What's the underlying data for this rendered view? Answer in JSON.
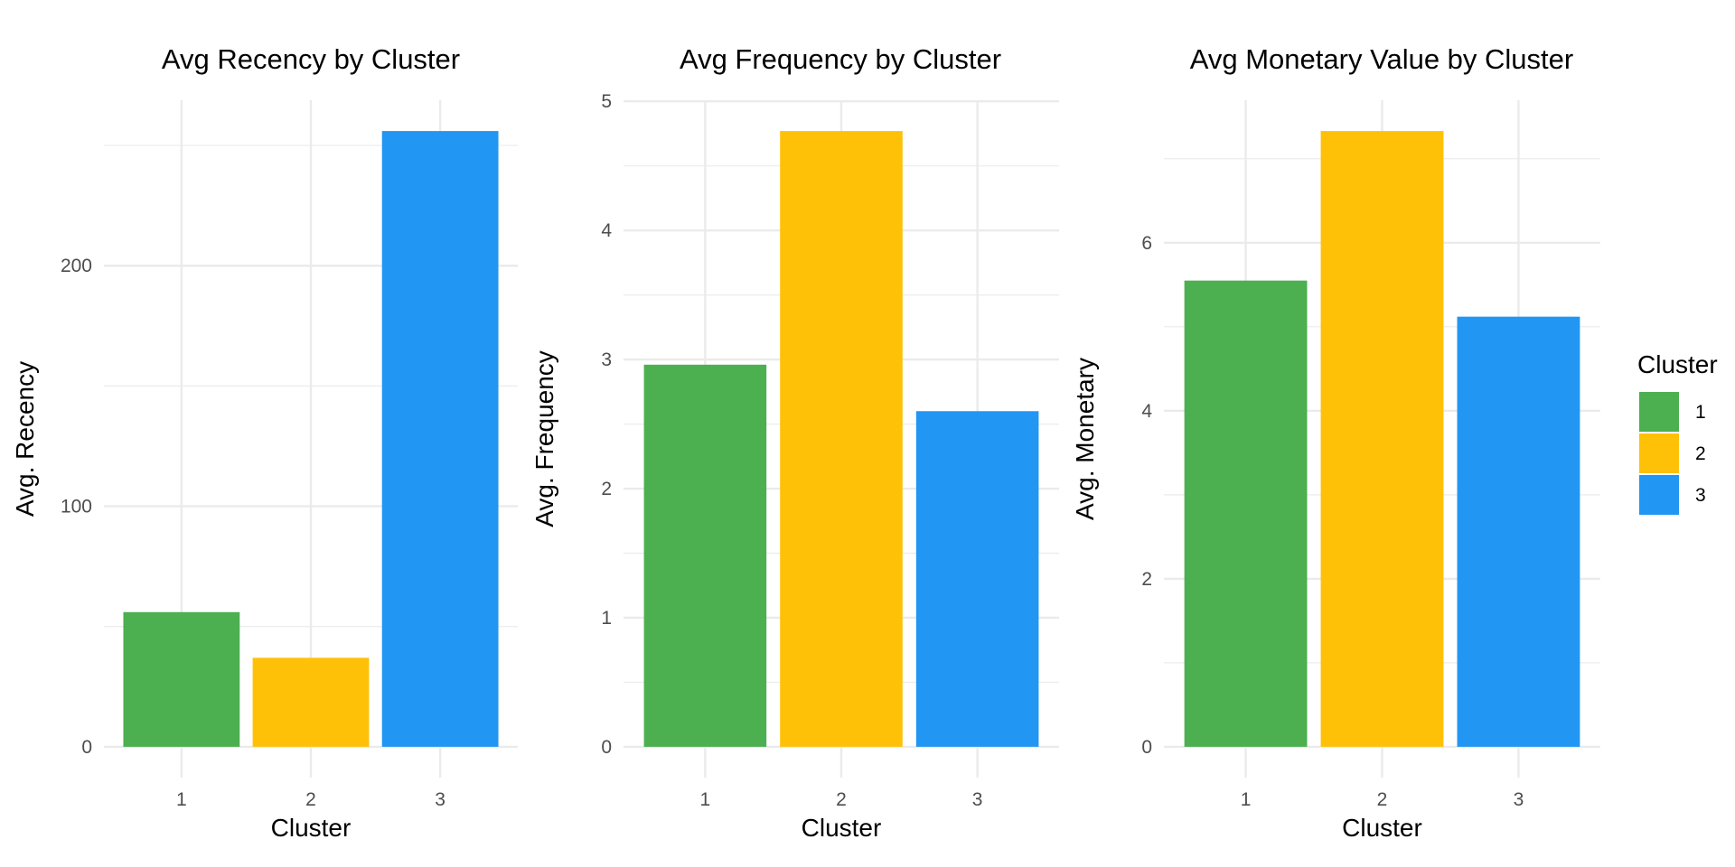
{
  "legend": {
    "title": "Cluster",
    "items": [
      {
        "label": "1",
        "color": "#4CAF50"
      },
      {
        "label": "2",
        "color": "#FFC107"
      },
      {
        "label": "3",
        "color": "#2196F3"
      }
    ]
  },
  "chart_data": [
    {
      "type": "bar",
      "title": "Avg Recency by Cluster",
      "xlabel": "Cluster",
      "ylabel": "Avg. Recency",
      "categories": [
        "1",
        "2",
        "3"
      ],
      "values": [
        56,
        37,
        256
      ],
      "colors": [
        "#4CAF50",
        "#FFC107",
        "#2196F3"
      ],
      "ylim": [
        -12.8,
        268.8
      ],
      "yticks": [
        0,
        100,
        200
      ],
      "yminor": [
        50,
        150,
        250
      ],
      "grid": true
    },
    {
      "type": "bar",
      "title": "Avg Frequency by Cluster",
      "xlabel": "Cluster",
      "ylabel": "Avg. Frequency",
      "categories": [
        "1",
        "2",
        "3"
      ],
      "values": [
        2.96,
        4.77,
        2.6
      ],
      "colors": [
        "#4CAF50",
        "#FFC107",
        "#2196F3"
      ],
      "ylim": [
        -0.2385,
        5.0085
      ],
      "yticks": [
        0,
        1,
        2,
        3,
        4,
        5
      ],
      "yminor": [
        0.5,
        1.5,
        2.5,
        3.5,
        4.5
      ],
      "grid": true
    },
    {
      "type": "bar",
      "title": "Avg Monetary Value by Cluster",
      "xlabel": "Cluster",
      "ylabel": "Avg. Monetary",
      "categories": [
        "1",
        "2",
        "3"
      ],
      "values": [
        5.55,
        7.33,
        5.12
      ],
      "colors": [
        "#4CAF50",
        "#FFC107",
        "#2196F3"
      ],
      "ylim": [
        -0.3665,
        7.6965
      ],
      "yticks": [
        0,
        2,
        4,
        6
      ],
      "yminor": [
        1,
        3,
        5,
        7
      ],
      "grid": true
    }
  ]
}
